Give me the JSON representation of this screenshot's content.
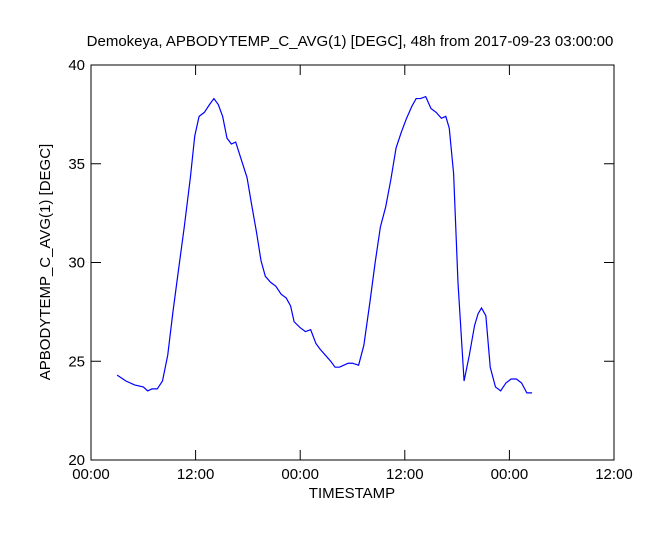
{
  "chart_data": {
    "type": "line",
    "title": "Demokeya, APBODYTEMP_C_AVG(1) [DEGC], 48h from  2017-09-23 03:00:00",
    "x_label": "TIMESTAMP",
    "y_label": "APBODYTEMP_C_AVG(1) [DEGC]",
    "xlim": [
      0,
      60
    ],
    "xticks": [
      {
        "value": 0,
        "label": "00:00"
      },
      {
        "value": 12,
        "label": "12:00"
      },
      {
        "value": 24,
        "label": "00:00"
      },
      {
        "value": 36,
        "label": "12:00"
      },
      {
        "value": 48,
        "label": "00:00"
      },
      {
        "value": 60,
        "label": "12:00"
      }
    ],
    "ylim": [
      20,
      40
    ],
    "yticks": [
      20,
      25,
      30,
      35,
      40
    ],
    "series": [
      {
        "color": "#0000ff",
        "x": [
          3,
          4,
          5,
          6,
          6.5,
          7,
          7.6,
          8.2,
          8.8,
          9.4,
          10,
          10.7,
          11.4,
          11.9,
          12.4,
          13,
          13.6,
          14.1,
          14.6,
          15.1,
          15.6,
          16.1,
          16.6,
          17.1,
          17.9,
          18.4,
          19,
          19.5,
          20,
          20.6,
          21.2,
          21.8,
          22.4,
          22.9,
          23.3,
          24,
          24.6,
          25.2,
          25.8,
          26.3,
          26.9,
          27.5,
          28,
          28.5,
          29,
          29.5,
          30,
          30.7,
          31.3,
          32,
          32.6,
          33.2,
          33.8,
          34.4,
          35,
          35.6,
          36.2,
          36.8,
          37.3,
          37.8,
          38.4,
          39,
          39.6,
          40.2,
          40.7,
          41.1,
          41.6,
          42.1,
          42.8,
          43.4,
          44,
          44.4,
          44.8,
          45.3,
          45.8,
          46.4,
          47,
          47.6,
          48.2,
          48.8,
          49.4,
          50,
          50.6
        ],
        "values": [
          24.3,
          24.0,
          23.8,
          23.7,
          23.5,
          23.6,
          23.6,
          24.0,
          25.3,
          27.5,
          29.5,
          31.8,
          34.3,
          36.4,
          37.4,
          37.6,
          38.0,
          38.3,
          38.0,
          37.4,
          36.3,
          36.0,
          36.1,
          35.4,
          34.3,
          33.0,
          31.5,
          30.1,
          29.3,
          29.0,
          28.8,
          28.4,
          28.2,
          27.8,
          27.0,
          26.7,
          26.5,
          26.6,
          25.9,
          25.6,
          25.3,
          25.0,
          24.7,
          24.7,
          24.8,
          24.9,
          24.9,
          24.8,
          25.8,
          28.0,
          30.0,
          31.8,
          32.8,
          34.2,
          35.8,
          36.6,
          37.3,
          37.9,
          38.3,
          38.3,
          38.4,
          37.8,
          37.6,
          37.3,
          37.4,
          36.8,
          34.5,
          29.0,
          24.0,
          25.3,
          26.8,
          27.4,
          27.7,
          27.3,
          24.7,
          23.7,
          23.5,
          23.9,
          24.1,
          24.1,
          23.9,
          23.4,
          23.4
        ]
      }
    ]
  }
}
